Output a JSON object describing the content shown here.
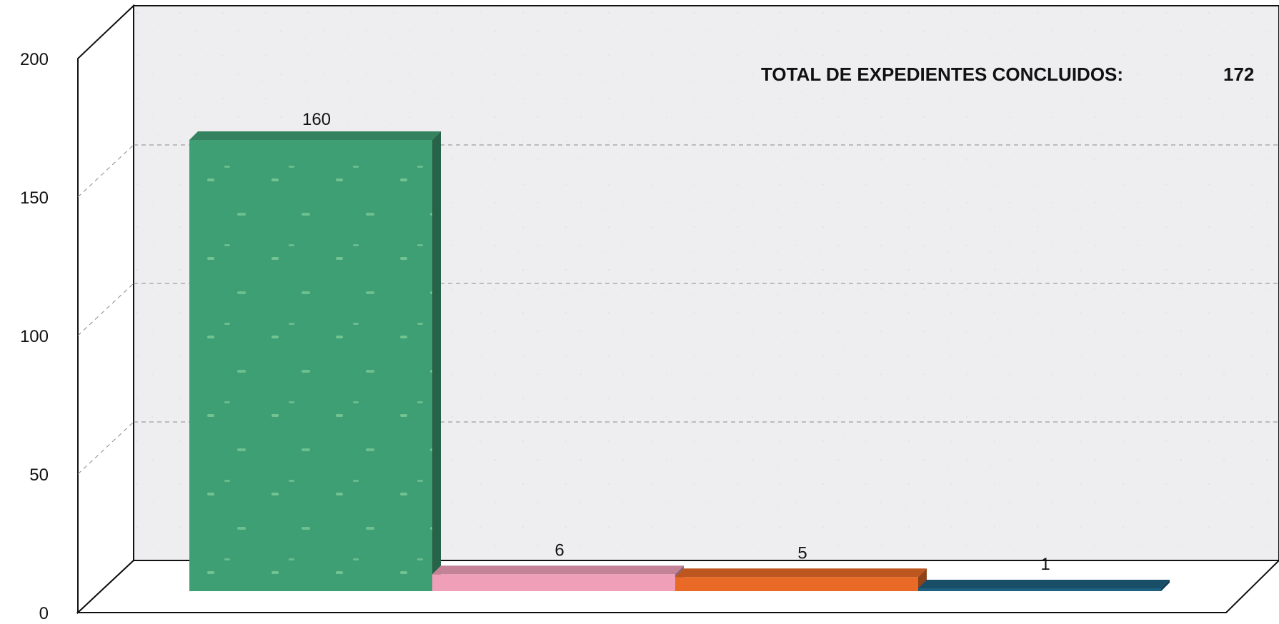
{
  "chart_data": {
    "type": "bar",
    "categories": [
      "",
      "",
      "",
      ""
    ],
    "values": [
      160,
      6,
      5,
      1
    ],
    "colors": [
      "#3f9f74",
      "#ef9fb8",
      "#e86a26",
      "#1f5f7f"
    ],
    "ylim": [
      0,
      200
    ],
    "yticks": [
      0,
      50,
      100,
      150,
      200
    ],
    "grid": true,
    "style": "3d-box",
    "annotation": {
      "label": "TOTAL DE EXPEDIENTES CONCLUIDOS:",
      "value": "172"
    }
  }
}
